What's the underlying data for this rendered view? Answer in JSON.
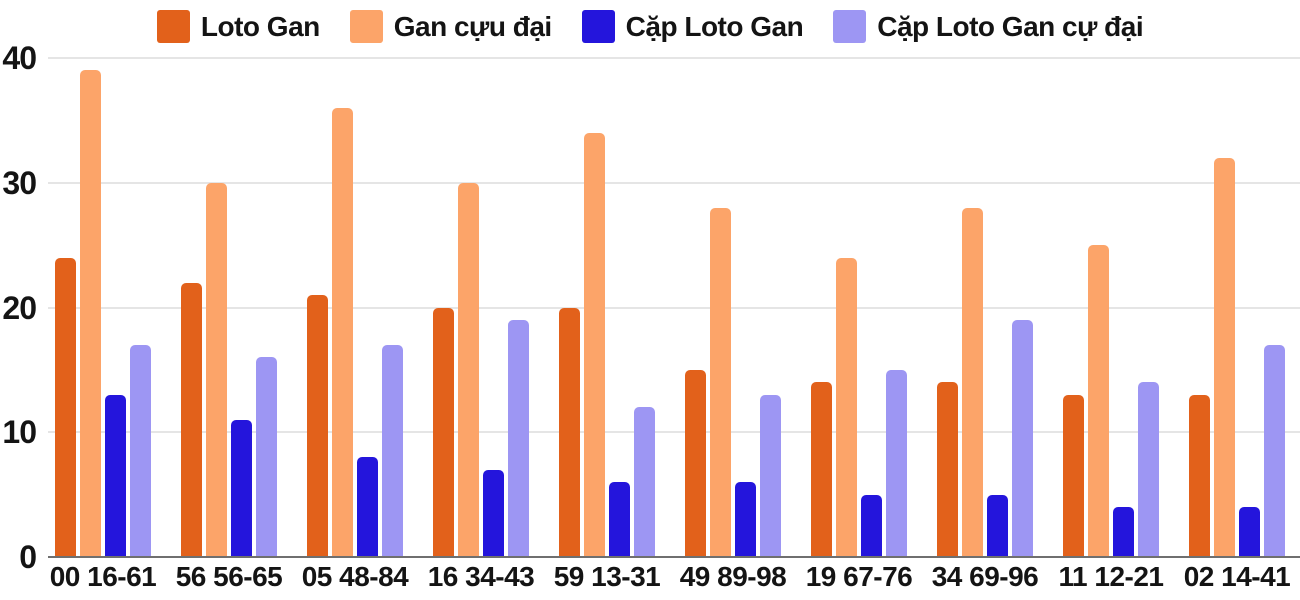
{
  "chart_data": {
    "type": "bar",
    "title": "",
    "xlabel": "",
    "ylabel": "",
    "categories": [
      "00 16-61",
      "56 56-65",
      "05 48-84",
      "16 34-43",
      "59 13-31",
      "49 89-98",
      "19 67-76",
      "34 69-96",
      "11 12-21",
      "02 14-41"
    ],
    "series": [
      {
        "name": "Loto Gan",
        "color": "#E2611B",
        "values": [
          24,
          22,
          21,
          20,
          20,
          15,
          14,
          14,
          13,
          13
        ]
      },
      {
        "name": "Gan cựu đại",
        "color": "#FCA469",
        "values": [
          39,
          30,
          36,
          30,
          34,
          28,
          24,
          28,
          25,
          32
        ]
      },
      {
        "name": "Cặp Loto Gan",
        "color": "#2415DC",
        "values": [
          13,
          11,
          8,
          7,
          6,
          6,
          5,
          5,
          4,
          4
        ]
      },
      {
        "name": "Cặp Loto Gan cự đại",
        "color": "#9D96F3",
        "values": [
          17,
          16,
          17,
          19,
          12,
          13,
          15,
          19,
          14,
          17
        ]
      }
    ],
    "ylim": [
      0,
      40
    ],
    "yticks": [
      0,
      10,
      20,
      30,
      40
    ],
    "grid": true,
    "legend_position": "top",
    "colors": {
      "grid_line": "#E5E5E5",
      "axis_line": "#6F6F6F",
      "text": "#141414",
      "background": "#FFFFFF"
    }
  }
}
